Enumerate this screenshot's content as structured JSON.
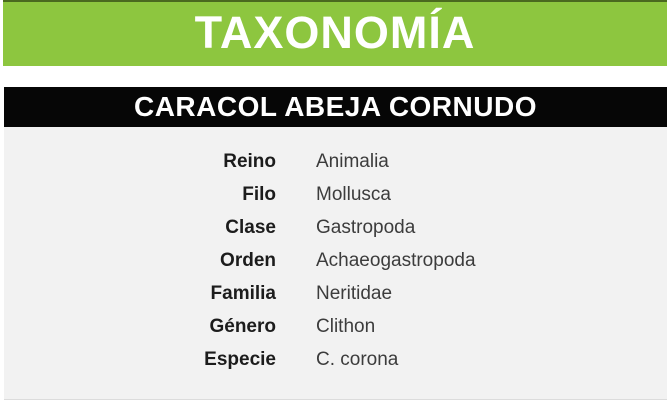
{
  "header": {
    "title": "TAXONOMÍA",
    "bg_color": "#8dc63f",
    "text_color": "#ffffff"
  },
  "subheader": {
    "title": "CARACOL ABEJA CORNUDO",
    "bg_color": "#060606",
    "text_color": "#ffffff"
  },
  "panel": {
    "bg_color": "#f2f2f2"
  },
  "taxonomy": {
    "rows": [
      {
        "label": "Reino",
        "value": "Animalia"
      },
      {
        "label": "Filo",
        "value": "Mollusca"
      },
      {
        "label": "Clase",
        "value": "Gastropoda"
      },
      {
        "label": "Orden",
        "value": "Achaeogastropoda"
      },
      {
        "label": "Familia",
        "value": "Neritidae"
      },
      {
        "label": "Género",
        "value": "Clithon"
      },
      {
        "label": "Especie",
        "value": "C. corona"
      }
    ]
  }
}
